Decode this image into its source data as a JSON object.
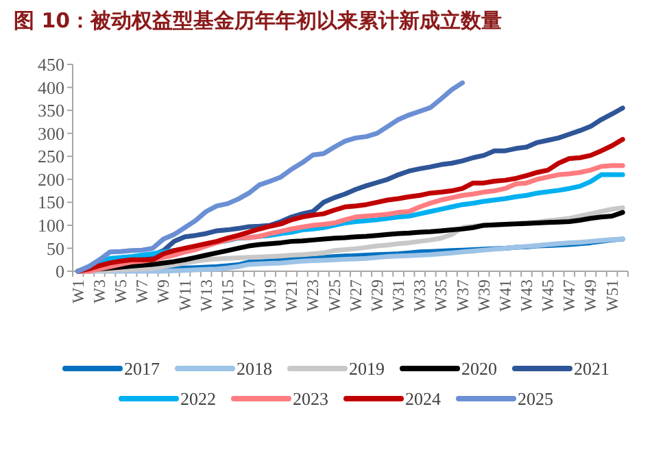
{
  "chart_data": {
    "type": "line",
    "title": "图 10：被动权益型基金历年年初以来累计新成立数量",
    "categories": [
      "W1",
      null,
      "W3",
      null,
      "W5",
      null,
      "W7",
      null,
      "W9",
      null,
      "W11",
      null,
      "W13",
      null,
      "W15",
      null,
      "W17",
      null,
      "W19",
      null,
      "W21",
      null,
      "W23",
      null,
      "W25",
      null,
      "W27",
      null,
      "W29",
      null,
      "W31",
      null,
      "W33",
      null,
      "W35",
      null,
      "W37",
      null,
      "W39",
      null,
      "W41",
      null,
      "W43",
      null,
      "W45",
      null,
      "W47",
      null,
      "W49",
      null,
      "W51",
      null
    ],
    "ylim": [
      0,
      450
    ],
    "yticks": [
      0,
      50,
      100,
      150,
      200,
      250,
      300,
      350,
      400,
      450
    ],
    "legend": "bottom",
    "grid": false,
    "series": [
      {
        "name": "2017",
        "color": "#0070c0",
        "values": [
          0,
          0,
          1,
          1,
          2,
          2,
          3,
          4,
          5,
          6,
          7,
          8,
          9,
          10,
          12,
          14,
          20,
          21,
          22,
          24,
          26,
          27,
          28,
          30,
          32,
          33,
          34,
          35,
          36,
          37,
          38,
          40,
          42,
          43,
          44,
          45,
          46,
          47,
          48,
          49,
          50,
          52,
          53,
          55,
          56,
          57,
          58,
          60,
          62,
          65,
          68,
          70
        ]
      },
      {
        "name": "2018",
        "color": "#9dc3e6",
        "values": [
          0,
          0,
          0,
          0,
          0,
          0,
          0,
          0,
          0,
          1,
          2,
          3,
          4,
          5,
          7,
          10,
          15,
          16,
          17,
          18,
          20,
          22,
          23,
          24,
          25,
          26,
          27,
          28,
          30,
          32,
          33,
          34,
          35,
          36,
          38,
          40,
          42,
          44,
          46,
          48,
          50,
          52,
          54,
          56,
          58,
          60,
          62,
          63,
          65,
          67,
          69,
          70
        ]
      },
      {
        "name": "2019",
        "color": "#c8c8c8",
        "values": [
          0,
          0,
          1,
          2,
          3,
          4,
          5,
          6,
          10,
          14,
          18,
          22,
          25,
          27,
          28,
          29,
          30,
          31,
          32,
          33,
          35,
          36,
          38,
          40,
          45,
          47,
          49,
          52,
          55,
          57,
          60,
          62,
          65,
          68,
          72,
          80,
          95,
          98,
          100,
          101,
          102,
          104,
          105,
          107,
          110,
          112,
          115,
          120,
          125,
          130,
          135,
          138
        ]
      },
      {
        "name": "2020",
        "color": "#000000",
        "values": [
          0,
          2,
          5,
          7,
          9,
          11,
          13,
          15,
          18,
          21,
          25,
          30,
          35,
          40,
          45,
          50,
          55,
          58,
          60,
          62,
          65,
          66,
          68,
          70,
          72,
          73,
          75,
          76,
          78,
          80,
          82,
          83,
          85,
          86,
          88,
          90,
          92,
          95,
          100,
          101,
          102,
          103,
          104,
          105,
          106,
          107,
          108,
          111,
          115,
          118,
          120,
          128
        ]
      },
      {
        "name": "2021",
        "color": "#2e5597",
        "values": [
          0,
          8,
          15,
          20,
          25,
          28,
          30,
          35,
          45,
          65,
          75,
          78,
          82,
          88,
          90,
          93,
          97,
          98,
          100,
          108,
          118,
          125,
          130,
          150,
          160,
          168,
          178,
          186,
          193,
          200,
          210,
          218,
          223,
          227,
          232,
          235,
          240,
          247,
          252,
          262,
          262,
          267,
          270,
          280,
          285,
          290,
          298,
          306,
          315,
          330,
          342,
          355
        ]
      },
      {
        "name": "2022",
        "color": "#00b0f0",
        "values": [
          0,
          10,
          20,
          28,
          30,
          32,
          35,
          38,
          42,
          45,
          48,
          52,
          58,
          63,
          67,
          72,
          73,
          76,
          78,
          82,
          85,
          90,
          92,
          95,
          100,
          105,
          108,
          110,
          112,
          115,
          118,
          120,
          125,
          130,
          135,
          140,
          145,
          148,
          152,
          155,
          158,
          162,
          165,
          170,
          173,
          176,
          180,
          185,
          195,
          210,
          210,
          210
        ]
      },
      {
        "name": "2023",
        "color": "#ff7c80",
        "values": [
          0,
          0,
          5,
          10,
          15,
          20,
          22,
          25,
          30,
          35,
          42,
          47,
          55,
          62,
          68,
          73,
          73,
          76,
          82,
          87,
          92,
          96,
          100,
          102,
          105,
          112,
          118,
          120,
          122,
          124,
          128,
          130,
          140,
          148,
          155,
          160,
          165,
          168,
          172,
          175,
          180,
          190,
          192,
          200,
          205,
          210,
          212,
          215,
          220,
          228,
          230,
          230
        ]
      },
      {
        "name": "2024",
        "color": "#c00000",
        "values": [
          0,
          5,
          12,
          18,
          22,
          25,
          25,
          25,
          38,
          45,
          50,
          55,
          60,
          65,
          72,
          78,
          85,
          92,
          98,
          103,
          112,
          118,
          122,
          125,
          133,
          140,
          142,
          145,
          150,
          155,
          158,
          162,
          165,
          170,
          172,
          175,
          180,
          192,
          192,
          196,
          198,
          202,
          208,
          215,
          220,
          235,
          245,
          247,
          252,
          262,
          273,
          287
        ]
      },
      {
        "name": "2025",
        "color": "#6a8fd4",
        "values": [
          0,
          10,
          25,
          42,
          43,
          45,
          46,
          50,
          70,
          80,
          95,
          110,
          130,
          142,
          147,
          157,
          170,
          188,
          196,
          205,
          222,
          236,
          253,
          256,
          270,
          283,
          290,
          293,
          300,
          315,
          330,
          340,
          348,
          356,
          375,
          395,
          410,
          null,
          null,
          null,
          null,
          null,
          null,
          null,
          null,
          null,
          null,
          null,
          null,
          null,
          null,
          null
        ]
      }
    ]
  }
}
